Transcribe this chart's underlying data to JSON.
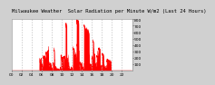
{
  "title": "Milwaukee Weather  Solar Radiation per Minute W/m2 (Last 24 Hours)",
  "bg_color": "#d0d0d0",
  "plot_bg_color": "#ffffff",
  "line_color": "#ff0000",
  "fill_color": "#ff0000",
  "grid_color": "#bbbbbb",
  "ymax": 800,
  "ymin": 0,
  "num_points": 1440,
  "yticks": [
    100,
    200,
    300,
    400,
    500,
    600,
    700,
    800
  ],
  "vgrid_hours": [
    2,
    4,
    6,
    8,
    10,
    12,
    14,
    16,
    18,
    20,
    22,
    24
  ],
  "xtick_hours": [
    0,
    2,
    4,
    6,
    8,
    10,
    12,
    14,
    16,
    18,
    20,
    22
  ],
  "title_fontsize": 4.0,
  "tick_fontsize": 3.2,
  "daylight_start": 5.5,
  "daylight_end": 19.8,
  "peak_hour": 12.5,
  "peak_val": 780
}
